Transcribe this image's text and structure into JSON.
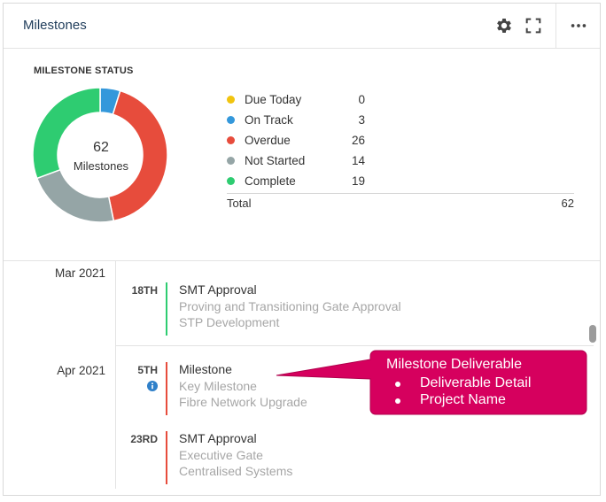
{
  "header": {
    "title": "Milestones",
    "icons": [
      "gear-icon",
      "expand-icon",
      "more-icon"
    ]
  },
  "status": {
    "label": "MILESTONE STATUS",
    "total_count": "62",
    "center_sub": "Milestones",
    "legend": [
      {
        "label": "Due Today",
        "value": 0,
        "color": "#f1c40f"
      },
      {
        "label": "On Track",
        "value": 3,
        "color": "#3498db"
      },
      {
        "label": "Overdue",
        "value": 26,
        "color": "#e74c3c"
      },
      {
        "label": "Not Started",
        "value": 14,
        "color": "#95a5a6"
      },
      {
        "label": "Complete",
        "value": 19,
        "color": "#2ecc71"
      }
    ],
    "total_label": "Total",
    "total_value": "62"
  },
  "timeline": {
    "months": [
      {
        "label": "Mar 2021"
      },
      {
        "label": "Apr 2021"
      }
    ],
    "milestones": [
      {
        "day": "18TH",
        "title": "SMT Approval",
        "line2": "Proving and Transitioning Gate Approval",
        "line3": "STP Development",
        "color": "#2ecc71"
      },
      {
        "day": "5TH",
        "title": "Milestone",
        "line2": "Key Milestone",
        "line3": "Fibre Network Upgrade",
        "color": "#e74c3c"
      },
      {
        "day": "23RD",
        "title": "SMT Approval",
        "line2": "Executive Gate",
        "line3": "Centralised Systems",
        "color": "#e74c3c"
      }
    ]
  },
  "callout": {
    "title": "Milestone Deliverable",
    "items": [
      "Deliverable Detail",
      "Project Name"
    ],
    "color": "#d6005e"
  }
}
